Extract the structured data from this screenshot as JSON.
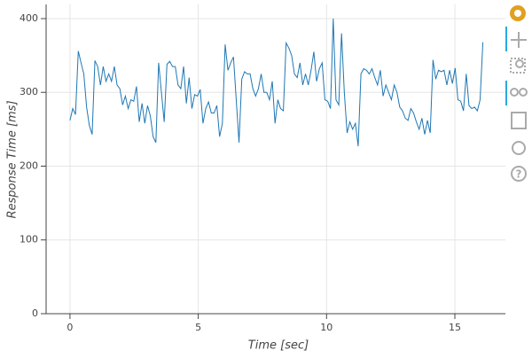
{
  "chart_data": {
    "type": "line",
    "x_label": "Time [sec]",
    "y_label": "Response Time [ms]",
    "x": [
      0,
      0.108,
      0.216,
      0.324,
      0.432,
      0.54,
      0.648,
      0.756,
      0.864,
      0.972,
      1.08,
      1.188,
      1.296,
      1.404,
      1.512,
      1.62,
      1.728,
      1.836,
      1.944,
      2.052,
      2.16,
      2.268,
      2.376,
      2.484,
      2.592,
      2.7,
      2.808,
      2.916,
      3.024,
      3.132,
      3.24,
      3.348,
      3.456,
      3.564,
      3.672,
      3.78,
      3.888,
      3.996,
      4.104,
      4.212,
      4.32,
      4.428,
      4.536,
      4.644,
      4.752,
      4.86,
      4.968,
      5.076,
      5.184,
      5.292,
      5.4,
      5.508,
      5.616,
      5.724,
      5.832,
      5.94,
      6.048,
      6.156,
      6.264,
      6.372,
      6.48,
      6.588,
      6.696,
      6.804,
      6.912,
      7.02,
      7.128,
      7.236,
      7.344,
      7.452,
      7.56,
      7.668,
      7.776,
      7.884,
      7.992,
      8.1,
      8.208,
      8.316,
      8.424,
      8.532,
      8.64,
      8.748,
      8.856,
      8.964,
      9.072,
      9.18,
      9.288,
      9.396,
      9.504,
      9.612,
      9.72,
      9.828,
      9.936,
      10.044,
      10.152,
      10.26,
      10.368,
      10.476,
      10.584,
      10.692,
      10.8,
      10.908,
      11.016,
      11.124,
      11.232,
      11.34,
      11.448,
      11.556,
      11.664,
      11.772,
      11.88,
      11.988,
      12.096,
      12.204,
      12.312,
      12.42,
      12.528,
      12.636,
      12.744,
      12.852,
      12.96,
      13.068,
      13.176,
      13.284,
      13.392,
      13.5,
      13.608,
      13.716,
      13.824,
      13.932,
      14.04,
      14.148,
      14.256,
      14.364,
      14.472,
      14.58,
      14.688,
      14.796,
      14.904,
      15.012,
      15.12,
      15.228,
      15.336,
      15.444,
      15.552,
      15.66,
      15.768,
      15.876,
      15.984,
      16.092
    ],
    "values": [
      262,
      278,
      270,
      356,
      340,
      325,
      280,
      255,
      243,
      343,
      335,
      310,
      335,
      315,
      325,
      315,
      335,
      310,
      305,
      283,
      295,
      278,
      290,
      288,
      308,
      260,
      285,
      258,
      282,
      268,
      240,
      232,
      340,
      300,
      260,
      338,
      342,
      335,
      335,
      310,
      305,
      335,
      285,
      320,
      278,
      297,
      295,
      304,
      258,
      278,
      287,
      272,
      272,
      282,
      240,
      258,
      365,
      330,
      340,
      348,
      290,
      232,
      318,
      328,
      325,
      325,
      305,
      295,
      305,
      325,
      300,
      300,
      290,
      315,
      258,
      290,
      278,
      275,
      367,
      360,
      350,
      325,
      320,
      340,
      310,
      325,
      310,
      330,
      355,
      315,
      332,
      340,
      290,
      288,
      278,
      400,
      290,
      283,
      380,
      300,
      245,
      260,
      250,
      258,
      227,
      325,
      332,
      330,
      325,
      332,
      320,
      310,
      330,
      295,
      310,
      300,
      290,
      310,
      300,
      280,
      275,
      265,
      262,
      278,
      272,
      260,
      250,
      265,
      243,
      262,
      245,
      344,
      318,
      330,
      328,
      330,
      310,
      330,
      312,
      333,
      290,
      288,
      275,
      325,
      282,
      278,
      280,
      275,
      290,
      368
    ],
    "color": "#1f77b4",
    "xlim": [
      -0.93,
      16.97
    ],
    "ylim": [
      0,
      419.2
    ],
    "xticks": [
      0,
      5,
      10,
      15
    ],
    "yticks": [
      0,
      100,
      200,
      300,
      400
    ],
    "grid": true
  }
}
